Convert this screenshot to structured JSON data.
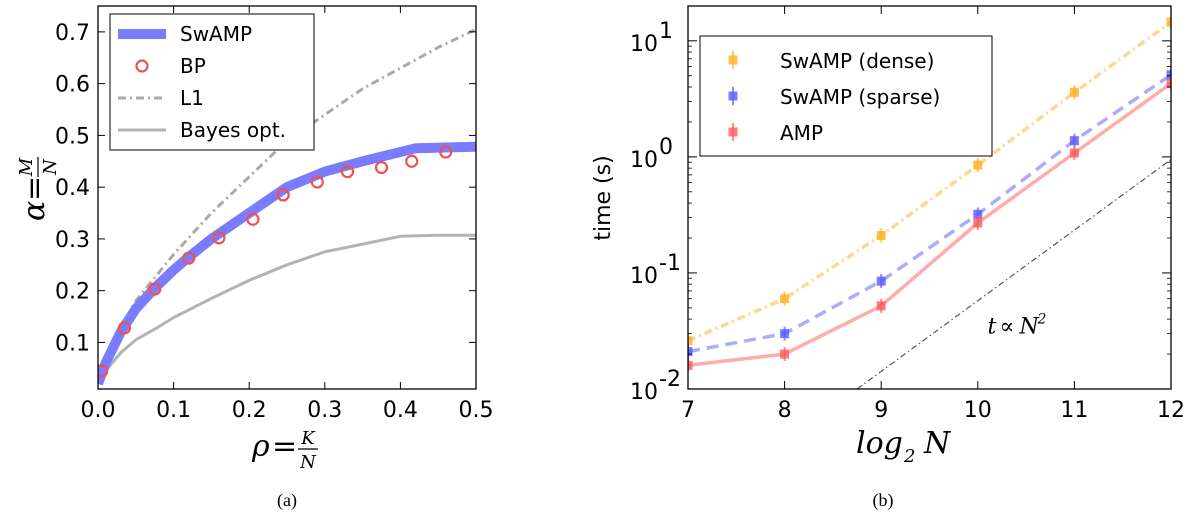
{
  "captions": {
    "a": "(a)",
    "b": "(b)"
  },
  "chart_data": [
    {
      "type": "line",
      "panel": "a",
      "xlabel_parts": {
        "lhs": "ρ",
        "eq": "=",
        "num": "K",
        "den": "N"
      },
      "ylabel_parts": {
        "lhs": "α",
        "eq": "=",
        "num": "M",
        "den": "N"
      },
      "xlim": [
        0.0,
        0.5
      ],
      "ylim": [
        0.01,
        0.75
      ],
      "xticks": [
        "0.0",
        "0.1",
        "0.2",
        "0.3",
        "0.4",
        "0.5"
      ],
      "yticks": [
        "0.1",
        "0.2",
        "0.3",
        "0.4",
        "0.5",
        "0.6",
        "0.7"
      ],
      "grid": false,
      "legend_position": "top-left",
      "series": [
        {
          "name": "SwAMP",
          "style": "thick-line",
          "color": "#7b7bff",
          "x": [
            0.0,
            0.01,
            0.03,
            0.05,
            0.075,
            0.1,
            0.12,
            0.15,
            0.2,
            0.25,
            0.3,
            0.35,
            0.42,
            0.5
          ],
          "y": [
            0.02,
            0.06,
            0.12,
            0.165,
            0.205,
            0.24,
            0.265,
            0.3,
            0.35,
            0.4,
            0.43,
            0.45,
            0.475,
            0.478
          ]
        },
        {
          "name": "BP",
          "style": "circles",
          "color": "#f05050",
          "x": [
            0.005,
            0.035,
            0.075,
            0.12,
            0.16,
            0.205,
            0.245,
            0.29,
            0.33,
            0.375,
            0.415,
            0.46
          ],
          "y": [
            0.045,
            0.128,
            0.203,
            0.263,
            0.302,
            0.338,
            0.385,
            0.41,
            0.43,
            0.438,
            0.45,
            0.468
          ]
        },
        {
          "name": "L1",
          "style": "dash-dot",
          "color": "#aaaaaa",
          "x": [
            0.0,
            0.02,
            0.05,
            0.1,
            0.15,
            0.2,
            0.25,
            0.3,
            0.35,
            0.4,
            0.45,
            0.5
          ],
          "y": [
            0.02,
            0.1,
            0.18,
            0.27,
            0.35,
            0.42,
            0.49,
            0.54,
            0.59,
            0.63,
            0.67,
            0.705
          ]
        },
        {
          "name": "Bayes opt.",
          "style": "line",
          "color": "#b3b3b3",
          "x": [
            0.0,
            0.01,
            0.03,
            0.05,
            0.08,
            0.1,
            0.15,
            0.2,
            0.25,
            0.3,
            0.35,
            0.4,
            0.45,
            0.5
          ],
          "y": [
            0.02,
            0.045,
            0.08,
            0.105,
            0.13,
            0.148,
            0.185,
            0.22,
            0.25,
            0.275,
            0.29,
            0.305,
            0.307,
            0.307
          ]
        }
      ]
    },
    {
      "type": "line",
      "panel": "b",
      "ylabel": "time (s)",
      "xlabel_parts": {
        "pre": "log",
        "sub": "2",
        "var": "N"
      },
      "xlim": [
        7,
        12
      ],
      "ylim_log10": [
        -2,
        1.3
      ],
      "yscale": "log",
      "xticks": [
        "7",
        "8",
        "9",
        "10",
        "11",
        "12"
      ],
      "yticks": [
        {
          "base": "10",
          "exp": "-2",
          "log": -2
        },
        {
          "base": "10",
          "exp": "-1",
          "log": -1
        },
        {
          "base": "10",
          "exp": "0",
          "log": 0
        },
        {
          "base": "10",
          "exp": "1",
          "log": 1
        }
      ],
      "grid": false,
      "legend_position": "top-left",
      "annotation": {
        "lhs": "t",
        "rel": "∝",
        "var": "N",
        "exp": "2",
        "x": 10.1,
        "y": 0.03
      },
      "series": [
        {
          "name": "SwAMP (dense)",
          "style": "dash-dot",
          "color": "#ffb020",
          "x": [
            7,
            8,
            9,
            10,
            11,
            12
          ],
          "y": [
            0.026,
            0.06,
            0.21,
            0.85,
            3.6,
            14.5
          ]
        },
        {
          "name": "SwAMP (sparse)",
          "style": "dashed",
          "color": "#5a5aff",
          "x": [
            7,
            8,
            9,
            10,
            11,
            12
          ],
          "y": [
            0.021,
            0.03,
            0.085,
            0.32,
            1.38,
            5.1
          ]
        },
        {
          "name": "AMP",
          "style": "solid",
          "color": "#ff5a5a",
          "x": [
            7,
            8,
            9,
            10,
            11,
            12
          ],
          "y": [
            0.016,
            0.02,
            0.052,
            0.27,
            1.08,
            4.3
          ]
        }
      ],
      "reference_line": {
        "style": "dash-dot",
        "color": "#555555",
        "x": [
          8.75,
          12
        ],
        "y": [
          0.01,
          0.95
        ]
      }
    }
  ]
}
